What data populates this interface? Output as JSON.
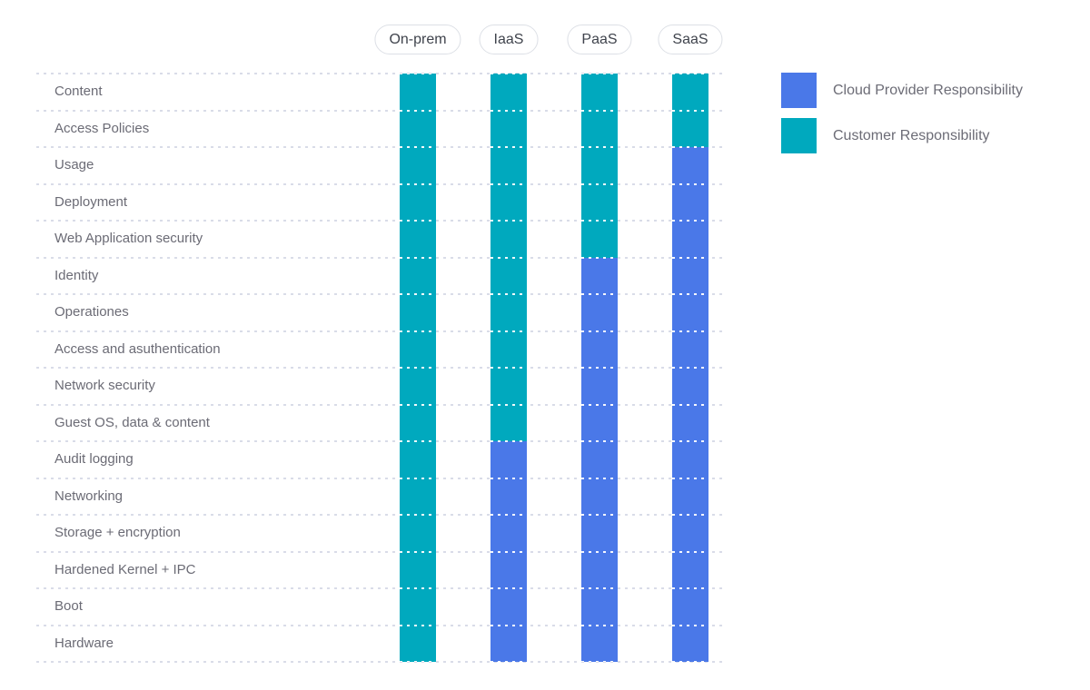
{
  "chart_data": {
    "type": "heatmap",
    "title": "",
    "columns": [
      "On-prem",
      "IaaS",
      "PaaS",
      "SaaS"
    ],
    "rows": [
      "Content",
      "Access Policies",
      "Usage",
      "Deployment",
      "Web Application security",
      "Identity",
      "Operationes",
      "Access and asuthentication",
      "Network security",
      "Guest OS, data & content",
      "Audit logging",
      "Networking",
      "Storage + encryption",
      "Hardened Kernel + IPC",
      "Boot",
      "Hardware"
    ],
    "legend": [
      {
        "key": "provider",
        "label": "Cloud Provider Responsibility",
        "color": "#4a78e8"
      },
      {
        "key": "customer",
        "label": "Customer Responsibility",
        "color": "#00a9be"
      }
    ],
    "legend_position": "top-right",
    "grid": "dotted-horizontal",
    "series": [
      {
        "name": "On-prem",
        "cells": [
          "customer",
          "customer",
          "customer",
          "customer",
          "customer",
          "customer",
          "customer",
          "customer",
          "customer",
          "customer",
          "customer",
          "customer",
          "customer",
          "customer",
          "customer",
          "customer"
        ]
      },
      {
        "name": "IaaS",
        "cells": [
          "customer",
          "customer",
          "customer",
          "customer",
          "customer",
          "customer",
          "customer",
          "customer",
          "customer",
          "customer",
          "provider",
          "provider",
          "provider",
          "provider",
          "provider",
          "provider"
        ]
      },
      {
        "name": "PaaS",
        "cells": [
          "customer",
          "customer",
          "customer",
          "customer",
          "customer",
          "provider",
          "provider",
          "provider",
          "provider",
          "provider",
          "provider",
          "provider",
          "provider",
          "provider",
          "provider",
          "provider"
        ]
      },
      {
        "name": "SaaS",
        "cells": [
          "customer",
          "customer",
          "provider",
          "provider",
          "provider",
          "provider",
          "provider",
          "provider",
          "provider",
          "provider",
          "provider",
          "provider",
          "provider",
          "provider",
          "provider",
          "provider"
        ]
      }
    ]
  }
}
